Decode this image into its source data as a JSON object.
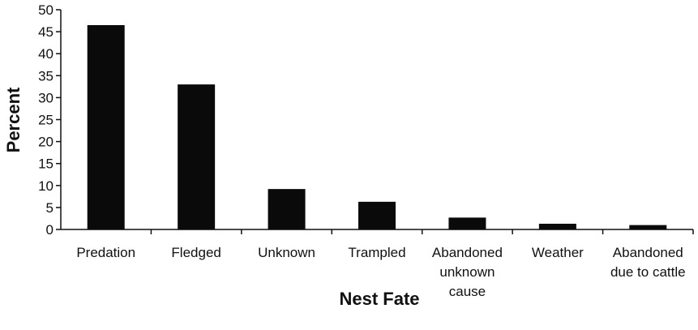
{
  "chart_data": {
    "type": "bar",
    "categories": [
      [
        "Predation"
      ],
      [
        "Fledged"
      ],
      [
        "Unknown"
      ],
      [
        "Trampled"
      ],
      [
        "Abandoned",
        "unknown",
        "cause"
      ],
      [
        "Weather"
      ],
      [
        "Abandoned",
        "due to cattle"
      ]
    ],
    "values": [
      46.5,
      33,
      9.2,
      6.3,
      2.7,
      1.3,
      1.0
    ],
    "xlabel": "Nest Fate",
    "ylabel": "Percent",
    "ylim": [
      0,
      50
    ],
    "yticks": [
      "0",
      "5",
      "10",
      "15",
      "20",
      "25",
      "30",
      "35",
      "40",
      "45",
      "50"
    ],
    "grid": false,
    "legend": "none",
    "bar_color": "#0a0a0a"
  }
}
